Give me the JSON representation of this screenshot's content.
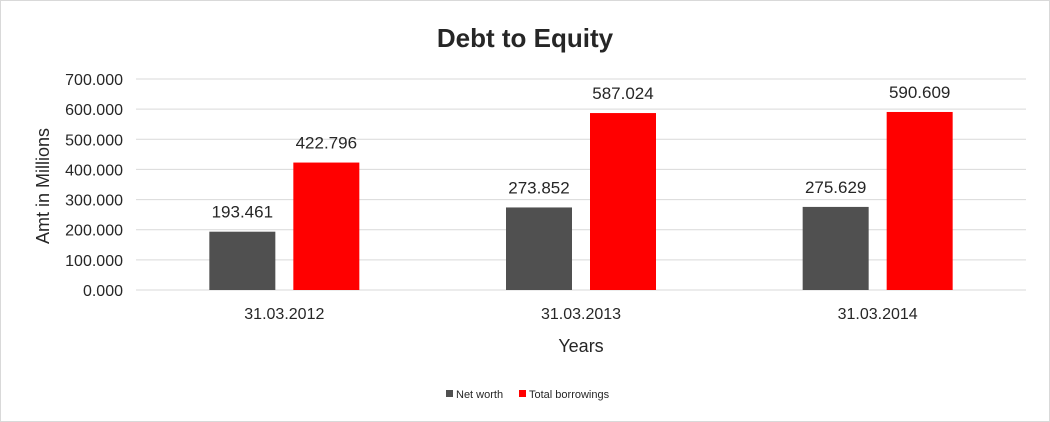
{
  "chart_data": {
    "type": "bar",
    "title": "Debt to Equity",
    "xlabel": "Years",
    "ylabel": "Amt in Millions",
    "categories": [
      "31.03.2012",
      "31.03.2013",
      "31.03.2014"
    ],
    "series": [
      {
        "name": "Net worth",
        "values": [
          193.461,
          273.852,
          275.629
        ],
        "color": "#505050"
      },
      {
        "name": "Total borrowings",
        "values": [
          422.796,
          587.024,
          590.609
        ],
        "color": "#ff0000"
      }
    ],
    "ylim": [
      0,
      700
    ],
    "yticks": [
      "0.000",
      "100.000",
      "200.000",
      "300.000",
      "400.000",
      "500.000",
      "600.000",
      "700.000"
    ],
    "data_labels": [
      [
        "193.461",
        "273.852",
        "275.629"
      ],
      [
        "422.796",
        "587.024",
        "590.609"
      ]
    ],
    "grid": true,
    "legend": "bottom"
  }
}
